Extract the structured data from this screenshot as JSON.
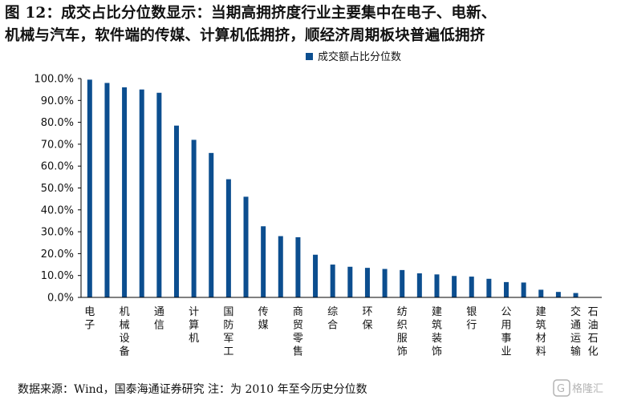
{
  "title": {
    "line1": "图 12：成交占比分位数显示：当期高拥挤度行业主要集中在电子、电新、",
    "line2": "机械与汽车，软件端的传媒、计算机低拥挤，顺经济周期板块普遍低拥挤"
  },
  "source": "数据来源：Wind，国泰海通证券研究  注：为 2010 年至今历史分位数",
  "watermark": "格隆汇",
  "colors": {
    "bar": "#0c4e8f",
    "axis": "#000000",
    "text": "#111111"
  },
  "chart_data": {
    "type": "bar",
    "legend": "成交额占比分位数",
    "legend_position": "top-center",
    "grid": false,
    "ylim": [
      0,
      100
    ],
    "yticks": [
      "0.0%",
      "10.0%",
      "20.0%",
      "30.0%",
      "40.0%",
      "50.0%",
      "60.0%",
      "70.0%",
      "80.0%",
      "90.0%",
      "100.0%"
    ],
    "categories": [
      "电子",
      "（未标注）",
      "机械设备",
      "（未标注）",
      "通信",
      "（未标注）",
      "计算机",
      "（未标注）",
      "国防军工",
      "（未标注）",
      "传媒",
      "（未标注）",
      "商贸零售",
      "（未标注）",
      "综合",
      "（未标注）",
      "环保",
      "（未标注）",
      "纺织服饰",
      "（未标注）",
      "建筑装饰",
      "（未标注）",
      "银行",
      "（未标注）",
      "公用事业",
      "（未标注）",
      "建筑材料",
      "（未标注）",
      "交通运输",
      "石油石化"
    ],
    "label_every": [
      0,
      2,
      4,
      6,
      8,
      10,
      12,
      14,
      16,
      18,
      20,
      22,
      24,
      26,
      28,
      29
    ],
    "values": [
      99.5,
      98.0,
      96.0,
      95.0,
      93.5,
      78.5,
      72.0,
      66.0,
      54.0,
      46.0,
      32.5,
      28.0,
      27.5,
      19.5,
      15.0,
      14.0,
      13.5,
      13.0,
      12.5,
      11.0,
      10.5,
      9.8,
      9.5,
      8.5,
      7.0,
      6.8,
      3.5,
      2.5,
      2.0,
      0.0
    ]
  }
}
